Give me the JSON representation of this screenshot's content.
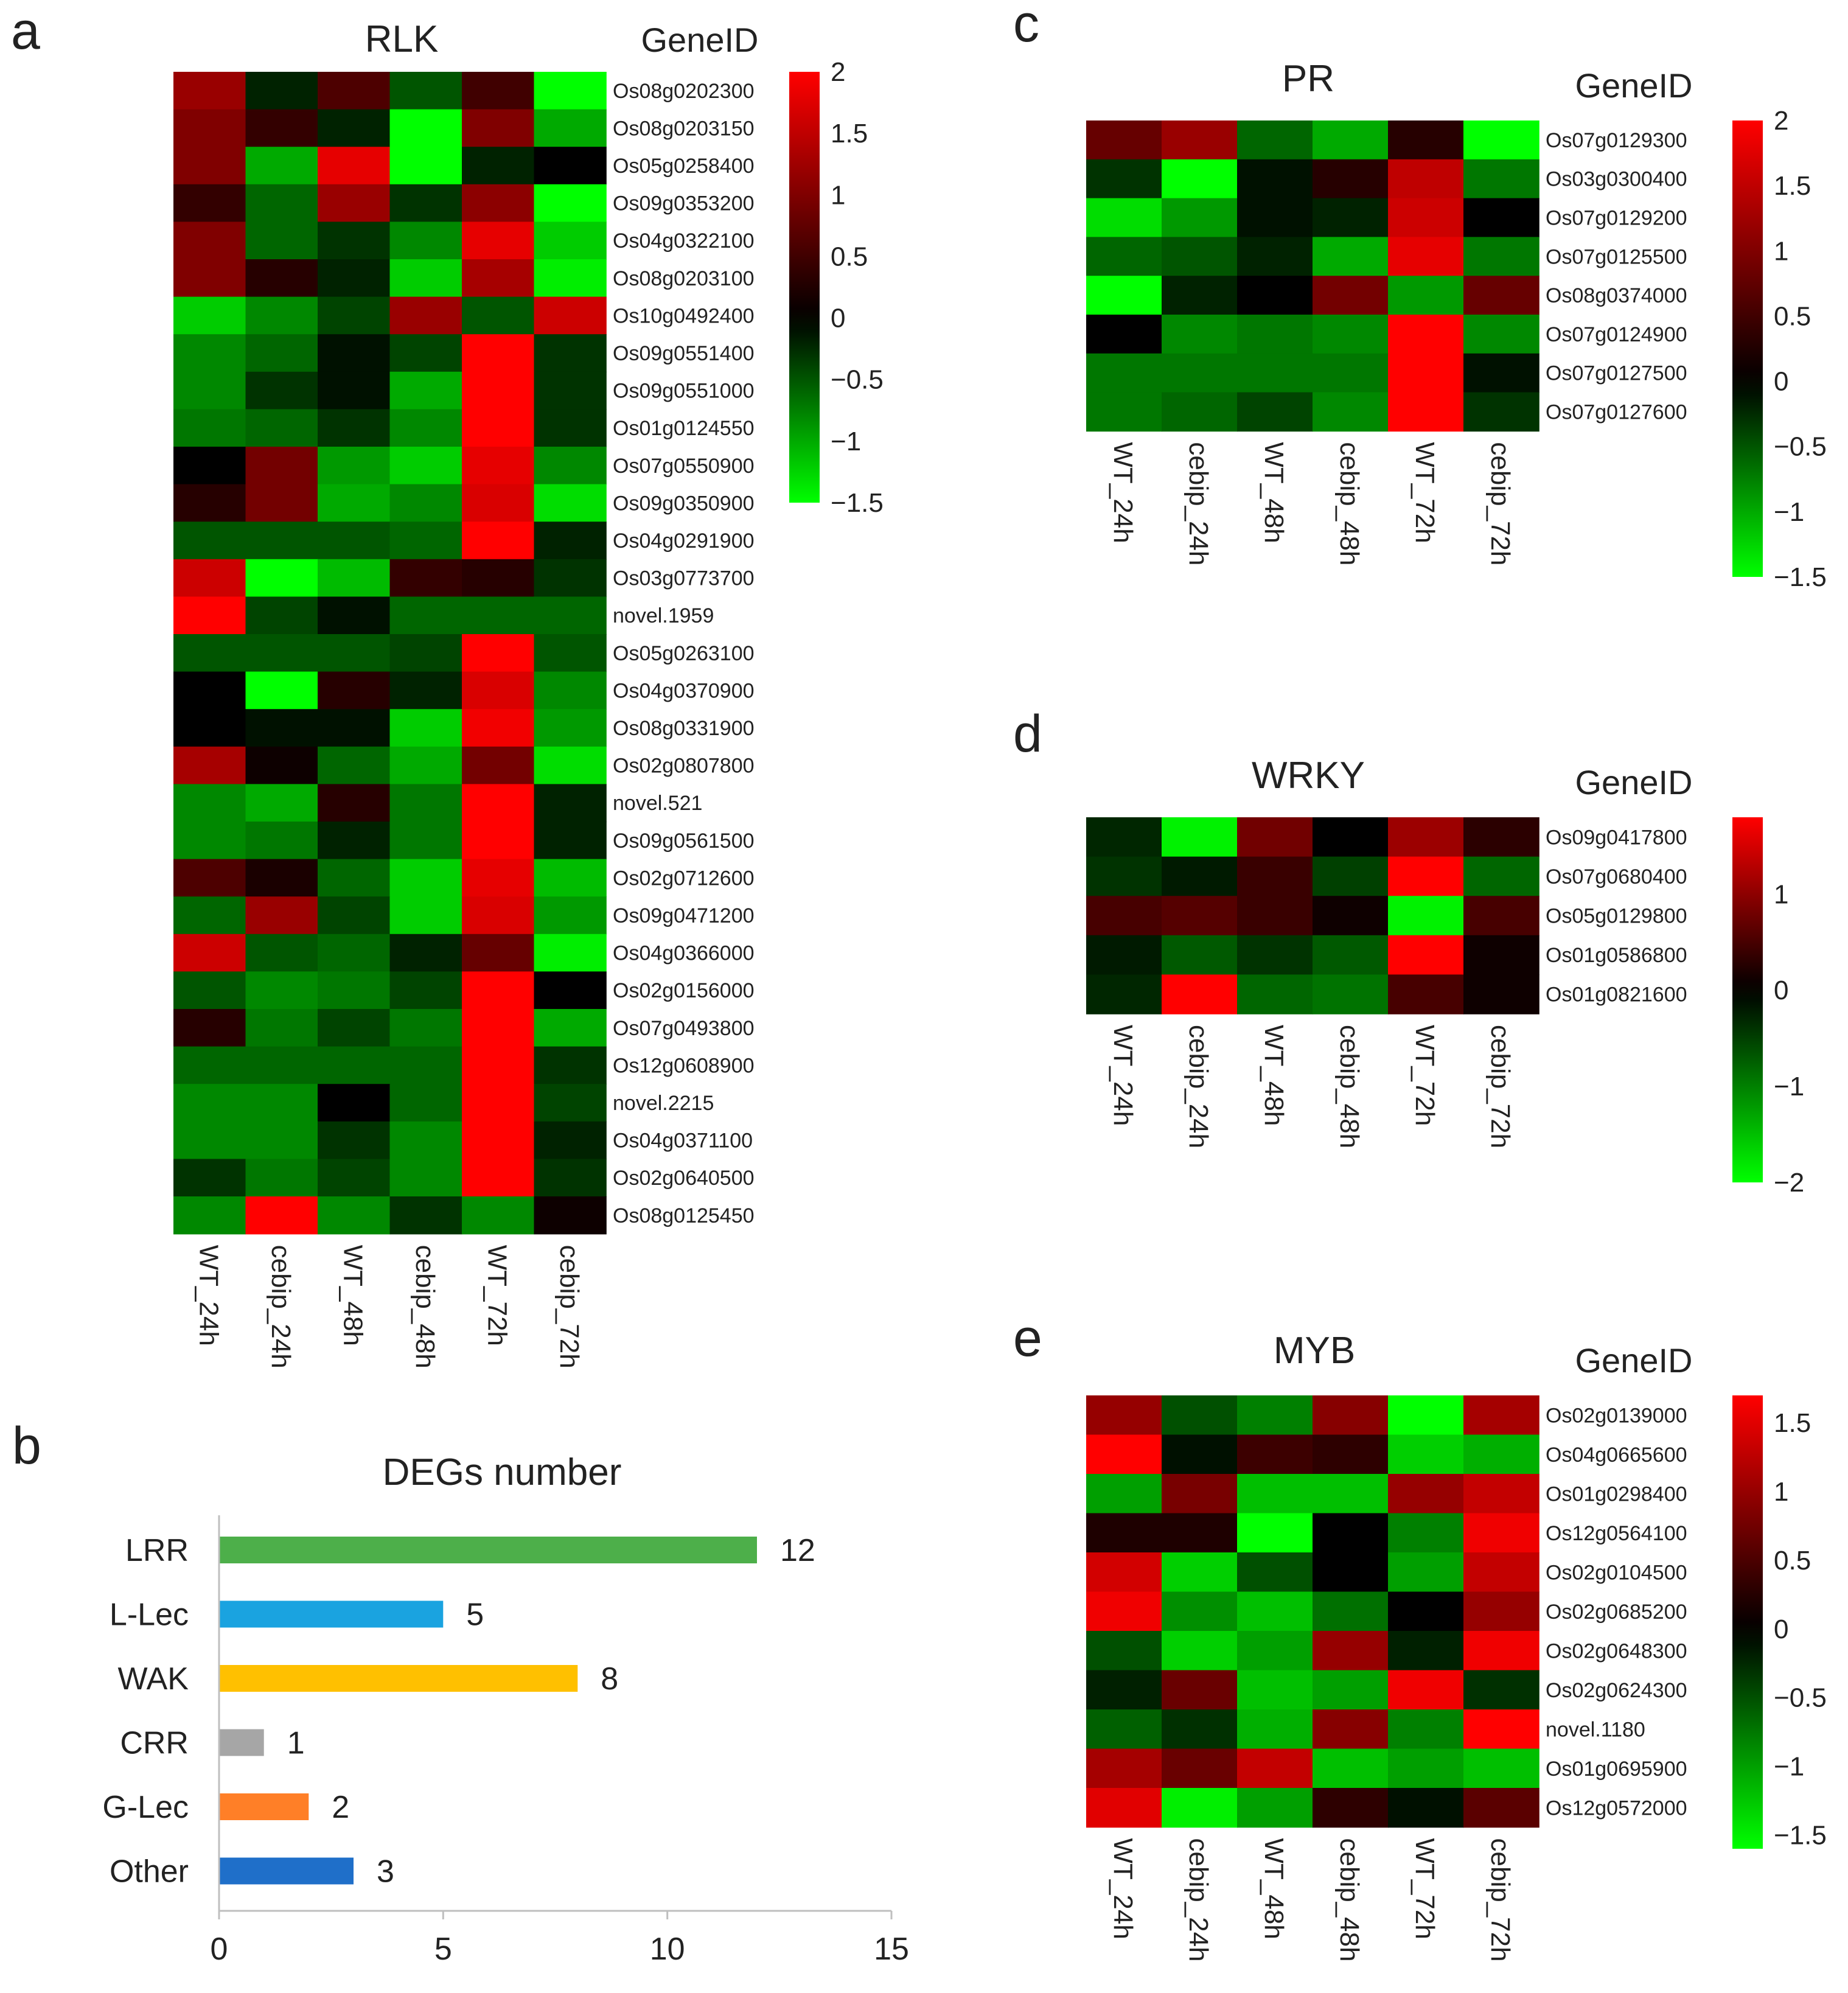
{
  "chart_data": [
    {
      "panel": "a",
      "type": "heatmap",
      "title": "RLK",
      "row_header": "GeneID",
      "columns": [
        "WT_24h",
        "cebip_24h",
        "WT_48h",
        "cebip_48h",
        "WT_72h",
        "cebip_72h"
      ],
      "rows": [
        "Os08g0202300",
        "Os08g0203150",
        "Os05g0258400",
        "Os09g0353200",
        "Os04g0322100",
        "Os08g0203100",
        "Os10g0492400",
        "Os09g0551400",
        "Os09g0551000",
        "Os01g0124550",
        "Os07g0550900",
        "Os09g0350900",
        "Os04g0291900",
        "Os03g0773700",
        "novel.1959",
        "Os05g0263100",
        "Os04g0370900",
        "Os08g0331900",
        "Os02g0807800",
        "novel.521",
        "Os09g0561500",
        "Os02g0712600",
        "Os09g0471200",
        "Os04g0366000",
        "Os02g0156000",
        "Os07g0493800",
        "Os12g0608900",
        "novel.2215",
        "Os04g0371100",
        "Os02g0640500",
        "Os08g0125450"
      ],
      "values": [
        [
          1.2,
          -0.2,
          0.6,
          -0.5,
          0.5,
          -1.8
        ],
        [
          1.0,
          0.4,
          -0.2,
          -1.5,
          1.0,
          -1.0
        ],
        [
          1.0,
          -1.0,
          1.8,
          -1.5,
          -0.2,
          0.0
        ],
        [
          0.4,
          -0.6,
          1.2,
          -0.3,
          1.1,
          -1.8
        ],
        [
          1.0,
          -0.6,
          -0.3,
          -0.8,
          1.8,
          -1.2
        ],
        [
          1.0,
          0.3,
          -0.2,
          -1.2,
          1.3,
          -1.4
        ],
        [
          -1.2,
          -0.8,
          -0.4,
          1.2,
          -0.5,
          1.6
        ],
        [
          -0.8,
          -0.6,
          -0.1,
          -0.4,
          2.0,
          -0.3
        ],
        [
          -0.8,
          -0.3,
          -0.1,
          -1.0,
          2.0,
          -0.3
        ],
        [
          -0.7,
          -0.6,
          -0.3,
          -0.8,
          2.0,
          -0.3
        ],
        [
          0.0,
          0.9,
          -0.9,
          -1.2,
          1.8,
          -0.8
        ],
        [
          0.3,
          0.9,
          -1.0,
          -0.8,
          1.7,
          -1.3
        ],
        [
          -0.5,
          -0.5,
          -0.5,
          -0.6,
          2.0,
          -0.2
        ],
        [
          1.6,
          -1.5,
          -1.1,
          0.4,
          0.3,
          -0.3
        ],
        [
          2.0,
          -0.4,
          -0.1,
          -0.6,
          -0.6,
          -0.6
        ],
        [
          -0.5,
          -0.5,
          -0.5,
          -0.4,
          2.0,
          -0.5
        ],
        [
          0.0,
          -1.7,
          0.3,
          -0.2,
          1.7,
          -0.8
        ],
        [
          0.0,
          -0.1,
          -0.1,
          -1.2,
          1.9,
          -0.9
        ],
        [
          1.3,
          0.1,
          -0.6,
          -1.0,
          0.9,
          -1.3
        ],
        [
          -0.8,
          -1.0,
          0.3,
          -0.7,
          2.0,
          -0.2
        ],
        [
          -0.8,
          -0.7,
          -0.2,
          -0.7,
          2.0,
          -0.2
        ],
        [
          0.6,
          0.2,
          -0.6,
          -1.2,
          1.8,
          -1.1
        ],
        [
          -0.6,
          1.2,
          -0.4,
          -1.2,
          1.7,
          -0.9
        ],
        [
          1.6,
          -0.5,
          -0.6,
          -0.2,
          0.8,
          -1.4
        ],
        [
          -0.5,
          -0.8,
          -0.7,
          -0.4,
          2.0,
          0.0
        ],
        [
          0.3,
          -0.7,
          -0.4,
          -0.7,
          2.0,
          -1.0
        ],
        [
          -0.6,
          -0.6,
          -0.6,
          -0.6,
          2.0,
          -0.3
        ],
        [
          -0.8,
          -0.8,
          0.0,
          -0.6,
          2.0,
          -0.4
        ],
        [
          -0.8,
          -0.8,
          -0.3,
          -0.8,
          2.0,
          -0.2
        ],
        [
          -0.3,
          -0.7,
          -0.4,
          -0.8,
          2.0,
          -0.3
        ],
        [
          -0.8,
          2.0,
          -0.8,
          -0.3,
          -0.8,
          0.1
        ]
      ],
      "colorbar": {
        "min": -1.5,
        "max": 2,
        "ticks": [
          "2",
          "1.5",
          "1",
          "0.5",
          "0",
          "−0.5",
          "−1",
          "−1.5"
        ],
        "tick_values": [
          2,
          1.5,
          1,
          0.5,
          0,
          -0.5,
          -1,
          -1.5
        ]
      }
    },
    {
      "panel": "b",
      "type": "bar",
      "orientation": "horizontal",
      "title": "DEGs number",
      "categories": [
        "LRR",
        "L-Lec",
        "WAK",
        "CRR",
        "G-Lec",
        "Other"
      ],
      "values": [
        12,
        5,
        8,
        1,
        2,
        3
      ],
      "value_labels": [
        "12",
        "5",
        "8",
        "1",
        "2",
        "3"
      ],
      "colors": [
        "#4daf4a",
        "#1aa3e0",
        "#ffc000",
        "#a6a6a6",
        "#ff7f27",
        "#1f6fc9"
      ],
      "xlim": [
        0,
        15
      ],
      "xticks": [
        "0",
        "5",
        "10",
        "15"
      ],
      "xtick_values": [
        0,
        5,
        10,
        15
      ]
    },
    {
      "panel": "c",
      "type": "heatmap",
      "title": "PR",
      "row_header": "GeneID",
      "columns": [
        "WT_24h",
        "cebip_24h",
        "WT_48h",
        "cebip_48h",
        "WT_72h",
        "cebip_72h"
      ],
      "rows": [
        "Os07g0129300",
        "Os03g0300400",
        "Os07g0129200",
        "Os07g0125500",
        "Os08g0374000",
        "Os07g0124900",
        "Os07g0127500",
        "Os07g0127600"
      ],
      "values": [
        [
          0.8,
          1.2,
          -0.6,
          -1.0,
          0.3,
          -1.5
        ],
        [
          -0.3,
          -1.5,
          -0.1,
          0.3,
          1.5,
          -0.7
        ],
        [
          -1.3,
          -0.9,
          -0.1,
          -0.2,
          1.6,
          0.0
        ],
        [
          -0.6,
          -0.5,
          -0.2,
          -1.0,
          1.8,
          -0.7
        ],
        [
          -1.5,
          -0.2,
          0.0,
          0.9,
          -0.9,
          0.8
        ],
        [
          0.0,
          -0.8,
          -0.7,
          -0.8,
          2.0,
          -0.8
        ],
        [
          -0.7,
          -0.7,
          -0.7,
          -0.7,
          2.0,
          -0.1
        ],
        [
          -0.7,
          -0.6,
          -0.4,
          -0.8,
          2.0,
          -0.3
        ]
      ],
      "colorbar": {
        "min": -1.5,
        "max": 2,
        "ticks": [
          "2",
          "1.5",
          "1",
          "0.5",
          "0",
          "−0.5",
          "−1",
          "−1.5"
        ],
        "tick_values": [
          2,
          1.5,
          1,
          0.5,
          0,
          -0.5,
          -1,
          -1.5
        ]
      }
    },
    {
      "panel": "d",
      "type": "heatmap",
      "title": "WRKY",
      "row_header": "GeneID",
      "columns": [
        "WT_24h",
        "cebip_24h",
        "WT_48h",
        "cebip_48h",
        "WT_72h",
        "cebip_72h"
      ],
      "rows": [
        "Os09g0417800",
        "Os07g0680400",
        "Os05g0129800",
        "Os01g0586800",
        "Os01g0821600"
      ],
      "values": [
        [
          -0.3,
          -1.9,
          0.8,
          0.0,
          1.1,
          0.3
        ],
        [
          -0.4,
          -0.2,
          0.4,
          -0.5,
          1.8,
          -0.8
        ],
        [
          0.5,
          0.6,
          0.4,
          0.1,
          -1.9,
          0.5
        ],
        [
          -0.2,
          -0.7,
          -0.4,
          -0.7,
          1.8,
          0.1
        ],
        [
          -0.3,
          1.8,
          -0.8,
          -0.9,
          0.5,
          0.1
        ]
      ],
      "colorbar": {
        "min": -2,
        "max": 1.8,
        "ticks": [
          "1",
          "0",
          "−1",
          "−2"
        ],
        "tick_values": [
          1,
          0,
          -1,
          -2
        ]
      }
    },
    {
      "panel": "e",
      "type": "heatmap",
      "title": "MYB",
      "row_header": "GeneID",
      "columns": [
        "WT_24h",
        "cebip_24h",
        "WT_48h",
        "cebip_48h",
        "WT_72h",
        "cebip_72h"
      ],
      "rows": [
        "Os02g0139000",
        "Os04g0665600",
        "Os01g0298400",
        "Os12g0564100",
        "Os02g0104500",
        "Os02g0685200",
        "Os02g0648300",
        "Os02g0624300",
        "novel.1180",
        "Os01g0695900",
        "Os12g0572000"
      ],
      "values": [
        [
          1.0,
          -0.5,
          -0.8,
          0.9,
          -1.6,
          1.1
        ],
        [
          1.7,
          -0.1,
          0.4,
          0.3,
          -1.3,
          -1.1
        ],
        [
          -1.0,
          0.8,
          -1.2,
          -1.2,
          1.0,
          1.3
        ],
        [
          0.2,
          0.2,
          -1.6,
          0.0,
          -0.8,
          1.6
        ],
        [
          1.4,
          -1.3,
          -0.5,
          0.0,
          -1.0,
          1.3
        ],
        [
          1.6,
          -0.9,
          -1.2,
          -0.7,
          0.0,
          1.0
        ],
        [
          -0.5,
          -1.3,
          -1.0,
          1.0,
          -0.2,
          1.6
        ],
        [
          -0.2,
          0.7,
          -1.2,
          -1.0,
          1.6,
          -0.3
        ],
        [
          -0.6,
          -0.3,
          -1.1,
          0.9,
          -0.8,
          1.7
        ],
        [
          1.1,
          0.7,
          1.3,
          -1.2,
          -1.0,
          -1.2
        ],
        [
          1.5,
          -1.5,
          -1.0,
          0.3,
          -0.1,
          0.6
        ]
      ],
      "colorbar": {
        "min": -1.6,
        "max": 1.7,
        "ticks": [
          "1.5",
          "1",
          "0.5",
          "0",
          "−0.5",
          "−1",
          "−1.5"
        ],
        "tick_values": [
          1.5,
          1,
          0.5,
          0,
          -0.5,
          -1,
          -1.5
        ]
      }
    }
  ]
}
